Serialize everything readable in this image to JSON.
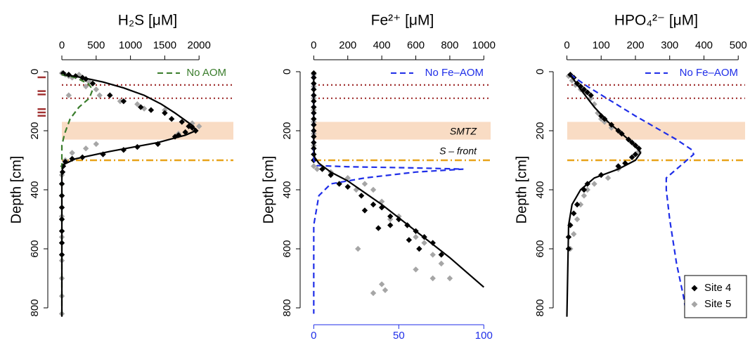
{
  "chart_data": [
    {
      "type": "scatter",
      "title": "H₂S [μM]",
      "ylabel": "Depth [cm]",
      "xlim": [
        -205,
        2500
      ],
      "xticks": [
        0,
        500,
        1000,
        1500,
        2000
      ],
      "ylim": [
        835,
        -15
      ],
      "yticks": [
        0,
        200,
        400,
        600,
        800
      ],
      "bands": [
        {
          "y": [
            170,
            230
          ],
          "color": "#f9dcc4"
        }
      ],
      "reference_lines": [
        {
          "y": 45,
          "color": "#a03030",
          "style": "dotted"
        },
        {
          "y": 90,
          "color": "#a03030",
          "style": "dotted"
        },
        {
          "y": 300,
          "color": "#e8a31a",
          "style": "dashdot"
        }
      ],
      "annotations": [
        {
          "text": "I",
          "color": "#a03030"
        },
        {
          "text": "II",
          "color": "#a03030"
        },
        {
          "text": "III",
          "color": "#a03030"
        }
      ],
      "series": [
        {
          "mode": "markers",
          "color": "#a6a6a6",
          "x": [
            0,
            50,
            100,
            150,
            250,
            300,
            400,
            350,
            500,
            550,
            100,
            850,
            1100,
            1200,
            1500,
            1900,
            2000,
            1950,
            1700,
            500,
            350,
            150,
            50,
            0,
            0,
            0,
            0,
            0,
            0,
            0,
            0
          ],
          "y": [
            5,
            10,
            15,
            20,
            10,
            25,
            35,
            50,
            60,
            80,
            80,
            100,
            110,
            125,
            130,
            175,
            185,
            200,
            210,
            245,
            260,
            275,
            300,
            350,
            420,
            490,
            560,
            640,
            700,
            760,
            820
          ]
        },
        {
          "mode": "markers",
          "color": "#000000",
          "x": [
            20,
            100,
            200,
            300,
            350,
            450,
            700,
            900,
            1150,
            1300,
            1500,
            1600,
            1750,
            1850,
            1900,
            1950,
            1800,
            1700,
            1650,
            1400,
            1100,
            900,
            600,
            300,
            150,
            50,
            20,
            10,
            0,
            0,
            0,
            0,
            0,
            0,
            0
          ],
          "y": [
            5,
            10,
            15,
            20,
            25,
            40,
            80,
            100,
            120,
            130,
            140,
            160,
            170,
            185,
            190,
            200,
            205,
            215,
            220,
            245,
            255,
            265,
            280,
            290,
            295,
            305,
            320,
            340,
            380,
            420,
            460,
            500,
            540,
            580,
            620
          ]
        },
        {
          "mode": "lines",
          "name": "No AOM",
          "color": "#3a7d2c",
          "dash": "dashed",
          "x": [
            0,
            200,
            380,
            450,
            400,
            250,
            120,
            40,
            0,
            0
          ],
          "y": [
            10,
            20,
            40,
            60,
            90,
            120,
            160,
            210,
            250,
            830
          ]
        },
        {
          "mode": "lines",
          "color": "#000000",
          "x": [
            30,
            300,
            600,
            900,
            1200,
            1450,
            1650,
            1800,
            1920,
            1950,
            1800,
            1400,
            700,
            200,
            20,
            0,
            0
          ],
          "y": [
            10,
            20,
            35,
            55,
            80,
            110,
            140,
            165,
            185,
            200,
            215,
            240,
            270,
            295,
            315,
            340,
            830
          ]
        }
      ]
    },
    {
      "type": "scatter",
      "title": "Fe²⁺ [μM]",
      "ylabel": "Depth [cm]",
      "xlim": [
        -80,
        1040
      ],
      "xticks": [
        0,
        200,
        400,
        600,
        800,
        1000
      ],
      "x2lim": [
        -8,
        104
      ],
      "x2ticks": [
        0,
        50,
        100
      ],
      "x2color": "#1f2ee8",
      "ylim": [
        835,
        -15
      ],
      "yticks": [
        0,
        200,
        400,
        600,
        800
      ],
      "bands": [
        {
          "y": [
            170,
            230
          ],
          "color": "#f9dcc4"
        }
      ],
      "reference_lines": [
        {
          "y": 45,
          "color": "#a03030",
          "style": "dotted"
        },
        {
          "y": 90,
          "color": "#a03030",
          "style": "dotted"
        },
        {
          "y": 300,
          "color": "#e8a31a",
          "style": "dashdot"
        }
      ],
      "annotations": [
        {
          "text": "SMTZ",
          "color": "#000000"
        },
        {
          "text": "S – front",
          "color": "#000000"
        }
      ],
      "series": [
        {
          "mode": "markers",
          "color": "#a6a6a6",
          "x": [
            0,
            0,
            0,
            0,
            0,
            0,
            0,
            0,
            20,
            100,
            200,
            300,
            250,
            350,
            400,
            450,
            500,
            550,
            600,
            650,
            700,
            750,
            800,
            600,
            700,
            400,
            420,
            350,
            260
          ],
          "y": [
            10,
            50,
            90,
            130,
            170,
            210,
            250,
            320,
            330,
            340,
            360,
            380,
            400,
            400,
            440,
            500,
            490,
            520,
            560,
            580,
            620,
            650,
            700,
            670,
            700,
            720,
            740,
            750,
            600
          ]
        },
        {
          "mode": "markers",
          "color": "#000000",
          "x": [
            0,
            0,
            0,
            0,
            0,
            0,
            0,
            0,
            0,
            0,
            0,
            0,
            0,
            0,
            0,
            0,
            50,
            100,
            150,
            200,
            280,
            350,
            300,
            400,
            450,
            500,
            380,
            550,
            600,
            650,
            700,
            620,
            750,
            560,
            450
          ],
          "y": [
            5,
            20,
            40,
            60,
            80,
            100,
            120,
            140,
            160,
            180,
            200,
            220,
            240,
            260,
            280,
            300,
            330,
            350,
            380,
            390,
            420,
            450,
            470,
            460,
            490,
            500,
            530,
            520,
            540,
            560,
            580,
            600,
            620,
            570,
            520
          ]
        },
        {
          "mode": "lines",
          "name": "No Fe–AOM",
          "color": "#1f2ee8",
          "dash": "dashed",
          "axis": "x2",
          "x": [
            0,
            0,
            2,
            20,
            60,
            88,
            60,
            30,
            10,
            3,
            0,
            0
          ],
          "y": [
            10,
            300,
            318,
            322,
            326,
            330,
            340,
            360,
            380,
            420,
            520,
            820
          ]
        },
        {
          "mode": "lines",
          "color": "#000000",
          "x": [
            0,
            0,
            5,
            30,
            100,
            200,
            400,
            600,
            800,
            1000
          ],
          "y": [
            10,
            250,
            290,
            310,
            340,
            370,
            450,
            540,
            630,
            730
          ]
        }
      ]
    },
    {
      "type": "scatter",
      "title": "HPO₄²⁻ [μM]",
      "ylabel": "Depth [cm]",
      "xlim": [
        -40,
        520
      ],
      "xticks": [
        0,
        100,
        200,
        300,
        400,
        500
      ],
      "ylim": [
        835,
        -15
      ],
      "yticks": [
        0,
        200,
        400,
        600,
        800
      ],
      "bands": [
        {
          "y": [
            170,
            230
          ],
          "color": "#f9dcc4"
        }
      ],
      "reference_lines": [
        {
          "y": 45,
          "color": "#a03030",
          "style": "dotted"
        },
        {
          "y": 90,
          "color": "#a03030",
          "style": "dotted"
        },
        {
          "y": 300,
          "color": "#e8a31a",
          "style": "dashdot"
        }
      ],
      "annotations": [],
      "series": [
        {
          "mode": "markers",
          "name": "Site 5",
          "color": "#a6a6a6",
          "x": [
            5,
            15,
            25,
            40,
            55,
            70,
            80,
            90,
            100,
            110,
            130,
            160,
            180,
            200,
            210,
            150,
            120,
            80,
            60,
            50,
            40,
            30,
            20,
            10
          ],
          "y": [
            15,
            30,
            45,
            60,
            70,
            90,
            110,
            140,
            160,
            170,
            190,
            210,
            230,
            250,
            270,
            330,
            360,
            380,
            400,
            420,
            450,
            500,
            550,
            600
          ]
        },
        {
          "mode": "markers",
          "name": "Site 4",
          "color": "#000000",
          "x": [
            10,
            20,
            30,
            40,
            50,
            60,
            70,
            100,
            110,
            130,
            150,
            160,
            180,
            190,
            200,
            210,
            200,
            190,
            170,
            150,
            100,
            60,
            50,
            30,
            20,
            10,
            5,
            5
          ],
          "y": [
            10,
            20,
            40,
            50,
            60,
            70,
            80,
            150,
            160,
            180,
            200,
            210,
            230,
            240,
            250,
            260,
            280,
            290,
            310,
            320,
            350,
            380,
            400,
            450,
            480,
            520,
            560,
            600
          ]
        },
        {
          "mode": "lines",
          "name": "No Fe–AOM",
          "color": "#1f2ee8",
          "dash": "dashed",
          "x": [
            10,
            60,
            130,
            200,
            260,
            320,
            365,
            370,
            330,
            290,
            290,
            300,
            320,
            340,
            350
          ],
          "y": [
            10,
            50,
            100,
            150,
            190,
            230,
            265,
            280,
            320,
            360,
            400,
            500,
            650,
            760,
            830
          ]
        },
        {
          "mode": "lines",
          "color": "#000000",
          "x": [
            10,
            40,
            80,
            120,
            160,
            200,
            215,
            200,
            150,
            80,
            40,
            15,
            5,
            0
          ],
          "y": [
            10,
            60,
            120,
            170,
            210,
            250,
            275,
            300,
            330,
            360,
            400,
            450,
            520,
            830
          ]
        }
      ]
    }
  ]
}
